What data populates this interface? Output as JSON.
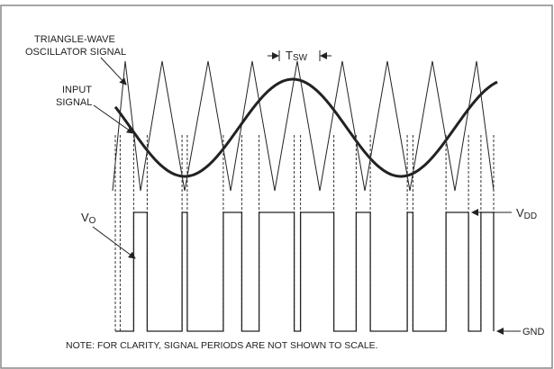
{
  "diagram": {
    "labels": {
      "triangle_line1": "TRIANGLE-WAVE",
      "triangle_line2": "OSCILLATOR SIGNAL",
      "input_line1": "INPUT",
      "input_line2": "SIGNAL",
      "tsw_main": "T",
      "tsw_sub": "SW",
      "vo_main": "V",
      "vo_sub": "O",
      "vdd_main": "V",
      "vdd_sub": "DD",
      "gnd": "GND",
      "note": "NOTE: FOR CLARITY, SIGNAL PERIODS ARE NOT SHOWN TO SCALE."
    },
    "colors": {
      "border": "#888888",
      "line": "#222222",
      "dashed": "#333333"
    }
  }
}
